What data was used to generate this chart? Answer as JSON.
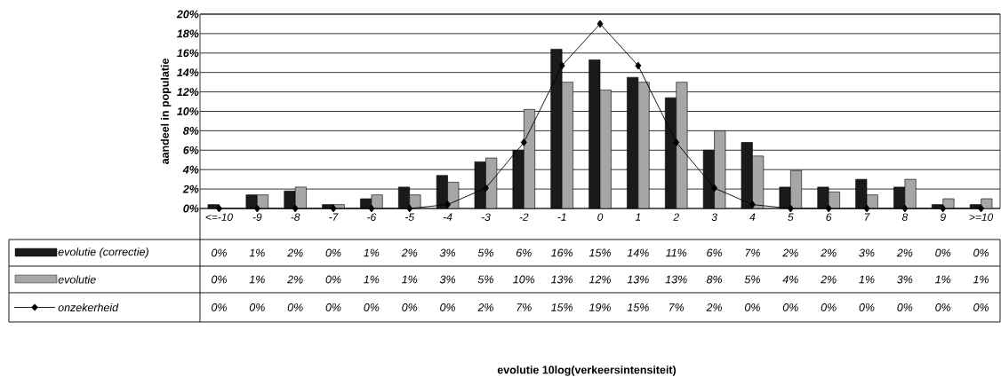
{
  "chart_data": {
    "type": "bar",
    "annotations": [
      "evolutie 10log(verkeersintensiteit)"
    ],
    "ylabel": "aandeel in populatie",
    "categories": [
      "<=-10",
      "-9",
      "-8",
      "-7",
      "-6",
      "-5",
      "-4",
      "-3",
      "-2",
      "-1",
      "0",
      "1",
      "2",
      "3",
      "4",
      "5",
      "6",
      "7",
      "8",
      "9",
      ">=10"
    ],
    "ylim": [
      0,
      20
    ],
    "yticks": [
      {
        "value": 0,
        "label": "0%"
      },
      {
        "value": 2,
        "label": "2%"
      },
      {
        "value": 4,
        "label": "4%"
      },
      {
        "value": 6,
        "label": "6%"
      },
      {
        "value": 8,
        "label": "8%"
      },
      {
        "value": 10,
        "label": "10%"
      },
      {
        "value": 12,
        "label": "12%"
      },
      {
        "value": 14,
        "label": "14%"
      },
      {
        "value": 16,
        "label": "16%"
      },
      {
        "value": 18,
        "label": "18%"
      },
      {
        "value": 20,
        "label": "20%"
      }
    ],
    "grid": "y",
    "legend": "bottom left",
    "series": [
      {
        "name": "evolutie (correctie)",
        "color": "#1a1a1a",
        "values": [
          0.4,
          1.4,
          1.8,
          0.4,
          1.0,
          2.2,
          3.4,
          4.8,
          6.0,
          16.4,
          15.3,
          13.5,
          11.4,
          6.0,
          6.8,
          2.2,
          2.2,
          3.0,
          2.2,
          0.4,
          0.4
        ],
        "value_labels": [
          "0%",
          "1%",
          "2%",
          "0%",
          "1%",
          "2%",
          "3%",
          "5%",
          "6%",
          "16%",
          "15%",
          "14%",
          "11%",
          "6%",
          "7%",
          "2%",
          "2%",
          "3%",
          "2%",
          "0%",
          "0%"
        ]
      },
      {
        "name": "evolutie",
        "color": "#a6a6a6",
        "values": [
          null,
          1.4,
          2.2,
          0.4,
          1.4,
          1.4,
          2.7,
          5.2,
          10.2,
          13.0,
          12.2,
          13.0,
          13.0,
          8.0,
          5.4,
          3.9,
          1.7,
          1.4,
          3.0,
          1.0,
          1.0
        ],
        "value_labels": [
          "0%",
          "1%",
          "2%",
          "0%",
          "1%",
          "1%",
          "3%",
          "5%",
          "10%",
          "13%",
          "12%",
          "13%",
          "13%",
          "8%",
          "5%",
          "4%",
          "2%",
          "1%",
          "3%",
          "1%",
          "1%"
        ]
      },
      {
        "name": "onzekerheid",
        "type": "line",
        "color": "#000000",
        "marker": "diamond",
        "values": [
          0,
          0,
          0,
          0,
          0,
          0,
          0.4,
          2.1,
          6.8,
          14.7,
          19.0,
          14.7,
          6.8,
          2.1,
          0.4,
          0,
          0,
          0,
          0,
          0,
          0
        ],
        "value_labels": [
          "0%",
          "0%",
          "0%",
          "0%",
          "0%",
          "0%",
          "0%",
          "2%",
          "7%",
          "15%",
          "19%",
          "15%",
          "7%",
          "2%",
          "0%",
          "0%",
          "0%",
          "0%",
          "0%",
          "0%",
          "0%"
        ]
      }
    ]
  }
}
